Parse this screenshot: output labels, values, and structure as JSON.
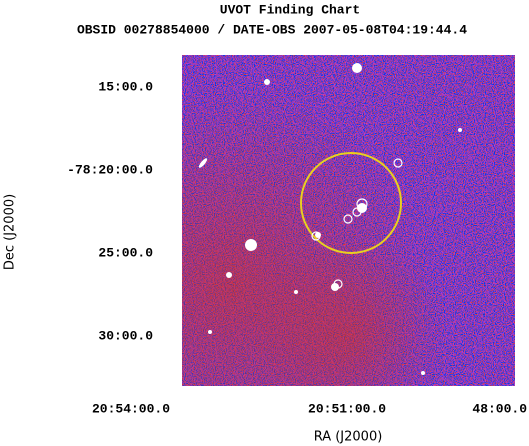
{
  "chart_data": {
    "type": "image",
    "title": "UVOT Finding Chart",
    "subtitle": "OBSID 00278854000 / DATE-OBS 2007-05-08T04:19:44.4",
    "x_label": "RA (J2000)",
    "y_label": "Dec (J2000)",
    "xlim": [
      313.323,
      312.167
    ],
    "ylim": [
      -78.55,
      -78.218
    ],
    "xticks": [
      {
        "value": 313.5,
        "label": "20:54:00.0"
      },
      {
        "value": 312.75,
        "label": "20:51:00.0"
      },
      {
        "value": 312.0,
        "label": "48:00.0"
      }
    ],
    "yticks": [
      {
        "value": -78.25,
        "label": "15:00.0"
      },
      {
        "value": -78.33333,
        "label": "-78:20:00.0"
      },
      {
        "value": -78.41667,
        "label": "25:00.0"
      },
      {
        "value": -78.5,
        "label": "30:00.0"
      }
    ]
  }
}
